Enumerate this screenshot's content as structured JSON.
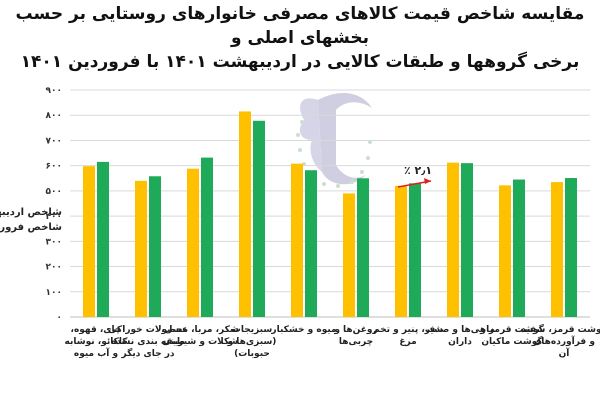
{
  "chart_data": {
    "type": "bar",
    "title": "مقایسه شاخص قیمت کالاهای مصرفی خانوارهای روستایی بر حسب بخشهای اصلی و\nبرخی گروهها و طبقات کالایی در اردیبهشت ۱۴۰۱ با فروردین ۱۴۰۱",
    "categories": [
      "چای، قهوه، کاکائو، نوشابه و آب میوه",
      "محصولات خوراکی طبقه بندی نشده در جای دیگر",
      "شکر، مربا، عسل، شکلات و شیرینی",
      "سبزیجات (سبزی‌ها و حبوبات)",
      "میوه و خشکبار",
      "روغن‌ها و چربی‌ها",
      "شیر، پنیر و تخم مرغ",
      "ماهی‌ها و صدف داران",
      "گوشت قرمز و گوشت ماکیان",
      "گوشت قرمز، سفید و فرآورده‌های آن"
    ],
    "series": [
      {
        "name": "شاخص اردیبهشت",
        "color": "#FFC000",
        "values": [
          598,
          540,
          588,
          815,
          608,
          490,
          520,
          612,
          522,
          535
        ]
      },
      {
        "name": "شاخص فروردین",
        "color": "#1FAA59",
        "values": [
          615,
          558,
          632,
          778,
          582,
          550,
          530,
          610,
          545,
          551
        ]
      }
    ],
    "ylim": [
      0,
      900
    ],
    "yticks": [
      "۰",
      "۱۰۰",
      "۲۰۰",
      "۳۰۰",
      "۴۰۰",
      "۵۰۰",
      "۶۰۰",
      "۷۰۰",
      "۸۰۰",
      "۹۰۰"
    ],
    "annotation": "٪ ۲٫۱",
    "grid": true,
    "legend": "left"
  }
}
